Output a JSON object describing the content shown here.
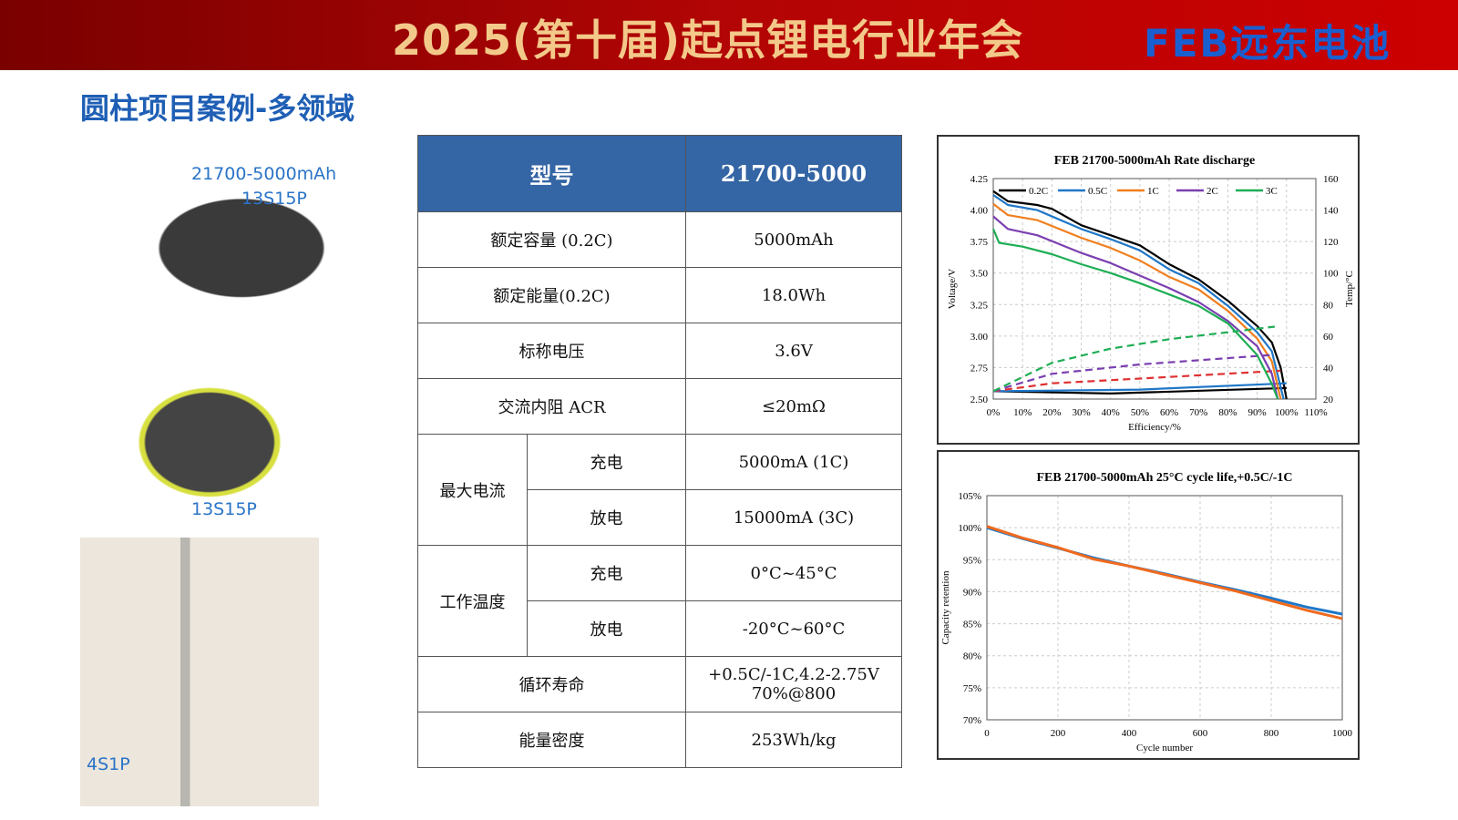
{
  "header": {
    "title": "2025(第十届)起点锂电行业年会",
    "logo": "FEB远东电池"
  },
  "subtitle": "圆柱项目案例-多领域",
  "images": [
    {
      "label1": "21700-5000mAh",
      "label2": "13S15P"
    },
    {
      "label1": "13S15P"
    },
    {
      "label1": "4S1P"
    }
  ],
  "table": {
    "headers": [
      "型号",
      "21700-5000"
    ],
    "rows": [
      {
        "name": "额定容量 (0.2C)",
        "value": "5000mAh"
      },
      {
        "name": "额定能量(0.2C)",
        "value": "18.0Wh"
      },
      {
        "name": "标称电压",
        "value": "3.6V"
      },
      {
        "name": "交流内阻 ACR",
        "value": "≤20mΩ"
      }
    ],
    "max_current": {
      "name": "最大电流",
      "charge": "充电",
      "charge_value": "5000mA (1C)",
      "discharge": "放电",
      "discharge_value": "15000mA (3C)"
    },
    "temp": {
      "name": "工作温度",
      "charge": "充电",
      "charge_value": "0°C~45°C",
      "discharge": "放电",
      "discharge_value": "-20°C~60°C"
    },
    "cycle": {
      "name": "循环寿命",
      "value1": "+0.5C/-1C,4.2-2.75V",
      "value2": "70%@800"
    },
    "density": {
      "name": "能量密度",
      "value": "253Wh/kg"
    }
  },
  "chart_data": [
    {
      "type": "line",
      "title": "FEB 21700-5000mAh Rate discharge",
      "xlabel": "Efficiency/%",
      "ylabel": "Voltage/V",
      "y2label": "Temp/°C",
      "xlim": [
        0,
        110
      ],
      "ylim": [
        2.5,
        4.25
      ],
      "y2lim": [
        20,
        160
      ],
      "grid": true,
      "legend": "top",
      "xticks": [
        "0%",
        "10%",
        "20%",
        "30%",
        "40%",
        "50%",
        "60%",
        "70%",
        "80%",
        "90%",
        "100%",
        "110%"
      ],
      "yticks": [
        "2.50",
        "2.75",
        "3.00",
        "3.25",
        "3.50",
        "3.75",
        "4.00",
        "4.25"
      ],
      "y2ticks": [
        "20",
        "40",
        "60",
        "80",
        "100",
        "120",
        "140",
        "160"
      ],
      "series": [
        {
          "name": "0.2C",
          "color": "#000000",
          "voltage": [
            [
              0,
              4.15
            ],
            [
              5,
              4.07
            ],
            [
              15,
              4.04
            ],
            [
              20,
              4.01
            ],
            [
              30,
              3.88
            ],
            [
              40,
              3.8
            ],
            [
              50,
              3.72
            ],
            [
              60,
              3.57
            ],
            [
              70,
              3.45
            ],
            [
              80,
              3.28
            ],
            [
              90,
              3.08
            ],
            [
              95,
              2.95
            ],
            [
              98,
              2.75
            ],
            [
              100,
              2.5
            ]
          ],
          "temp": [
            [
              0,
              25
            ],
            [
              40,
              23.5
            ],
            [
              100,
              27
            ]
          ]
        },
        {
          "name": "0.5C",
          "color": "#1f77c8",
          "voltage": [
            [
              0,
              4.12
            ],
            [
              5,
              4.04
            ],
            [
              15,
              4.0
            ],
            [
              30,
              3.85
            ],
            [
              40,
              3.77
            ],
            [
              50,
              3.68
            ],
            [
              60,
              3.53
            ],
            [
              70,
              3.42
            ],
            [
              80,
              3.24
            ],
            [
              90,
              3.03
            ],
            [
              95,
              2.88
            ],
            [
              99,
              2.5
            ]
          ],
          "temp": [
            [
              0,
              25
            ],
            [
              50,
              26
            ],
            [
              100,
              30
            ]
          ]
        },
        {
          "name": "1C",
          "color": "#f07f1e",
          "voltage": [
            [
              0,
              4.05
            ],
            [
              5,
              3.96
            ],
            [
              15,
              3.92
            ],
            [
              30,
              3.78
            ],
            [
              40,
              3.7
            ],
            [
              50,
              3.6
            ],
            [
              60,
              3.47
            ],
            [
              70,
              3.37
            ],
            [
              80,
              3.2
            ],
            [
              90,
              2.98
            ],
            [
              95,
              2.8
            ],
            [
              98,
              2.5
            ]
          ],
          "temp": [
            [
              0,
              25
            ],
            [
              20,
              30
            ],
            [
              50,
              33
            ],
            [
              98,
              38
            ]
          ],
          "temp_color": "#e03030"
        },
        {
          "name": "2C",
          "color": "#7b3fb0",
          "voltage": [
            [
              0,
              3.95
            ],
            [
              5,
              3.85
            ],
            [
              15,
              3.8
            ],
            [
              30,
              3.66
            ],
            [
              40,
              3.58
            ],
            [
              50,
              3.48
            ],
            [
              60,
              3.38
            ],
            [
              70,
              3.27
            ],
            [
              80,
              3.12
            ],
            [
              90,
              2.92
            ],
            [
              95,
              2.7
            ],
            [
              97,
              2.5
            ]
          ],
          "temp": [
            [
              0,
              25
            ],
            [
              20,
              36
            ],
            [
              50,
              42
            ],
            [
              95,
              48
            ]
          ]
        },
        {
          "name": "3C",
          "color": "#1fae55",
          "voltage": [
            [
              0,
              3.85
            ],
            [
              2,
              3.74
            ],
            [
              10,
              3.71
            ],
            [
              20,
              3.65
            ],
            [
              30,
              3.57
            ],
            [
              40,
              3.5
            ],
            [
              50,
              3.42
            ],
            [
              60,
              3.33
            ],
            [
              70,
              3.24
            ],
            [
              80,
              3.1
            ],
            [
              90,
              2.85
            ],
            [
              95,
              2.62
            ],
            [
              97,
              2.5
            ]
          ],
          "temp": [
            [
              0,
              25
            ],
            [
              20,
              43
            ],
            [
              40,
              52
            ],
            [
              60,
              58
            ],
            [
              96,
              66
            ]
          ]
        }
      ]
    },
    {
      "type": "line",
      "title": "FEB 21700-5000mAh 25°C cycle life,+0.5C/-1C",
      "xlabel": "Cycle number",
      "ylabel": "Capacity retention",
      "xlim": [
        0,
        1000
      ],
      "ylim": [
        70,
        105
      ],
      "grid": true,
      "xticks": [
        "0",
        "200",
        "400",
        "600",
        "800",
        "1000"
      ],
      "yticks": [
        "70%",
        "75%",
        "80%",
        "85%",
        "90%",
        "95%",
        "100%",
        "105%"
      ],
      "series": [
        {
          "color": "#1f77c8",
          "values": [
            [
              0,
              100
            ],
            [
              100,
              98.3
            ],
            [
              200,
              96.8
            ],
            [
              300,
              95.3
            ],
            [
              400,
              94
            ],
            [
              500,
              92.8
            ],
            [
              600,
              91.5
            ],
            [
              700,
              90.3
            ],
            [
              800,
              89
            ],
            [
              900,
              87.6
            ],
            [
              1000,
              86.5
            ]
          ]
        },
        {
          "color": "#f06a1e",
          "values": [
            [
              0,
              100.2
            ],
            [
              100,
              98.4
            ],
            [
              200,
              96.9
            ],
            [
              300,
              95.1
            ],
            [
              400,
              94
            ],
            [
              500,
              92.7
            ],
            [
              600,
              91.4
            ],
            [
              700,
              90.1
            ],
            [
              800,
              88.6
            ],
            [
              900,
              87.1
            ],
            [
              1000,
              85.8
            ]
          ]
        }
      ]
    }
  ]
}
